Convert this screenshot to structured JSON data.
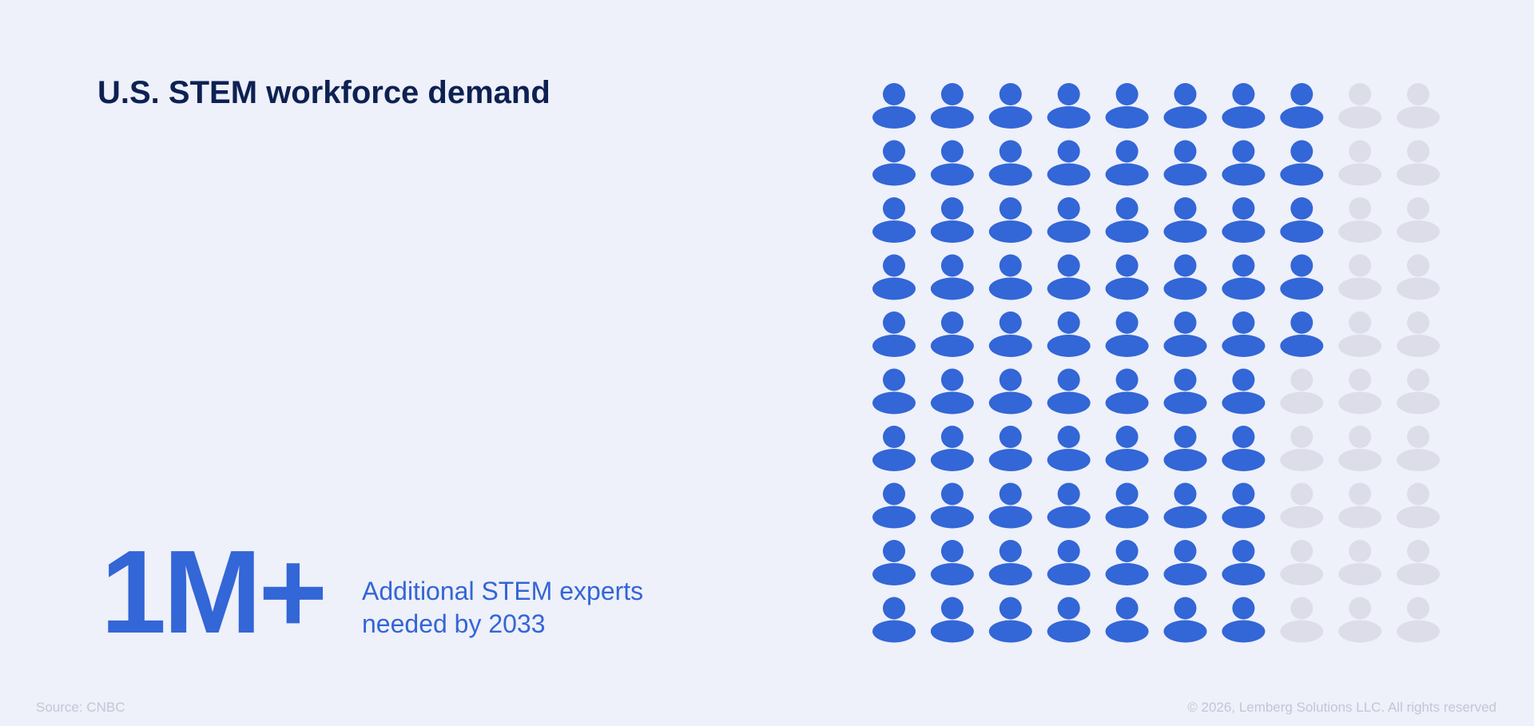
{
  "chart_data": {
    "type": "pictogram",
    "title": "U.S. STEM workforce demand",
    "headline": "1M+",
    "caption": "Additional STEM experts needed by 2033",
    "value": 75,
    "total": 100,
    "color": "#3366d6",
    "empty_color": "#dcdde9",
    "source": "Source: CNBC",
    "copyright": "© 2026, Lemberg Solutions LLC. All rights reserved"
  }
}
